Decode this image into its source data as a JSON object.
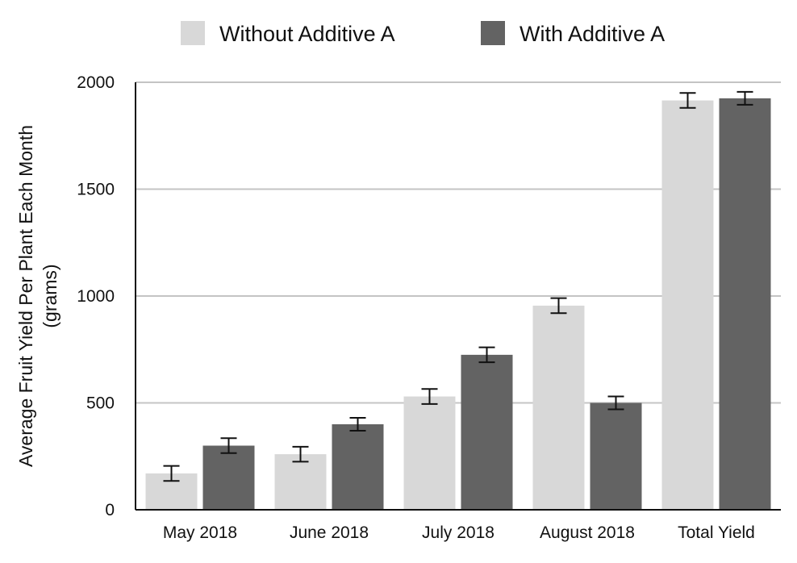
{
  "chart_data": {
    "type": "bar",
    "title": "",
    "xlabel": "",
    "ylabel_lines": [
      "Average Fruit Yield Per Plant Each Month",
      "(grams)"
    ],
    "categories": [
      "May 2018",
      "June 2018",
      "July 2018",
      "August 2018",
      "Total Yield"
    ],
    "series": [
      {
        "name": "Without Additive A",
        "color": "#d8d8d8",
        "values": [
          170,
          260,
          530,
          955,
          1915
        ],
        "error": [
          35,
          35,
          35,
          35,
          35
        ]
      },
      {
        "name": "With Additive A",
        "color": "#636363",
        "values": [
          300,
          400,
          725,
          500,
          1925
        ],
        "error": [
          35,
          30,
          35,
          30,
          30
        ]
      }
    ],
    "ylim": [
      0,
      2000
    ],
    "yticks": [
      0,
      500,
      1000,
      1500,
      2000
    ],
    "grid": true,
    "legend_position": "top",
    "error_bars": true
  }
}
